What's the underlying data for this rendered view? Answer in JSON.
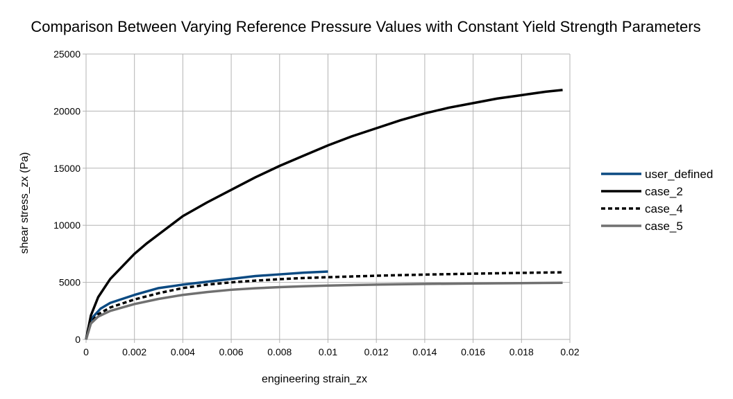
{
  "chart_data": {
    "type": "line",
    "title": "Comparison Between Varying Reference Pressure Values with Constant Yield Strength Parameters",
    "xlabel": "engineering strain_zx",
    "ylabel": "shear stress_zx (Pa)",
    "xlim": [
      0,
      0.02
    ],
    "ylim": [
      0,
      25000
    ],
    "x_ticks": [
      "0",
      "0.002",
      "0.004",
      "0.006",
      "0.008",
      "0.01",
      "0.012",
      "0.014",
      "0.016",
      "0.018",
      "0.02"
    ],
    "y_ticks": [
      "0",
      "5000",
      "10000",
      "15000",
      "20000",
      "25000"
    ],
    "grid": true,
    "legend_position": "right",
    "series": [
      {
        "name": "user_defined",
        "color": "#0b4a82",
        "dash": "solid",
        "points": [
          [
            0,
            0
          ],
          [
            0.0001,
            1000
          ],
          [
            0.0003,
            2000
          ],
          [
            0.0006,
            2700
          ],
          [
            0.001,
            3200
          ],
          [
            0.002,
            3900
          ],
          [
            0.003,
            4500
          ],
          [
            0.004,
            4800
          ],
          [
            0.005,
            5050
          ],
          [
            0.006,
            5300
          ],
          [
            0.007,
            5550
          ],
          [
            0.008,
            5700
          ],
          [
            0.009,
            5850
          ],
          [
            0.01,
            5950
          ]
        ]
      },
      {
        "name": "case_2",
        "color": "#000000",
        "dash": "solid",
        "points": [
          [
            0,
            0
          ],
          [
            0.0002,
            2100
          ],
          [
            0.0005,
            3700
          ],
          [
            0.001,
            5300
          ],
          [
            0.0015,
            6400
          ],
          [
            0.002,
            7500
          ],
          [
            0.0025,
            8400
          ],
          [
            0.003,
            9200
          ],
          [
            0.0035,
            10000
          ],
          [
            0.004,
            10800
          ],
          [
            0.005,
            12000
          ],
          [
            0.006,
            13100
          ],
          [
            0.007,
            14200
          ],
          [
            0.008,
            15200
          ],
          [
            0.009,
            16100
          ],
          [
            0.01,
            17000
          ],
          [
            0.011,
            17800
          ],
          [
            0.012,
            18500
          ],
          [
            0.013,
            19200
          ],
          [
            0.014,
            19800
          ],
          [
            0.015,
            20300
          ],
          [
            0.016,
            20700
          ],
          [
            0.017,
            21100
          ],
          [
            0.018,
            21400
          ],
          [
            0.019,
            21700
          ],
          [
            0.0197,
            21850
          ]
        ]
      },
      {
        "name": "case_4",
        "color": "#000000",
        "dash": "dashed",
        "points": [
          [
            0,
            0
          ],
          [
            0.0002,
            1500
          ],
          [
            0.0005,
            2200
          ],
          [
            0.001,
            2800
          ],
          [
            0.002,
            3500
          ],
          [
            0.003,
            4050
          ],
          [
            0.004,
            4500
          ],
          [
            0.005,
            4800
          ],
          [
            0.006,
            5000
          ],
          [
            0.007,
            5150
          ],
          [
            0.008,
            5280
          ],
          [
            0.009,
            5380
          ],
          [
            0.01,
            5450
          ],
          [
            0.012,
            5580
          ],
          [
            0.014,
            5680
          ],
          [
            0.016,
            5760
          ],
          [
            0.018,
            5830
          ],
          [
            0.0197,
            5880
          ]
        ]
      },
      {
        "name": "case_5",
        "color": "#707070",
        "dash": "solid",
        "points": [
          [
            0,
            0
          ],
          [
            0.0002,
            1400
          ],
          [
            0.0005,
            2000
          ],
          [
            0.001,
            2500
          ],
          [
            0.002,
            3100
          ],
          [
            0.003,
            3550
          ],
          [
            0.004,
            3900
          ],
          [
            0.005,
            4150
          ],
          [
            0.006,
            4350
          ],
          [
            0.007,
            4480
          ],
          [
            0.008,
            4580
          ],
          [
            0.009,
            4660
          ],
          [
            0.01,
            4720
          ],
          [
            0.012,
            4800
          ],
          [
            0.014,
            4860
          ],
          [
            0.016,
            4900
          ],
          [
            0.018,
            4930
          ],
          [
            0.0197,
            4960
          ]
        ]
      }
    ]
  }
}
